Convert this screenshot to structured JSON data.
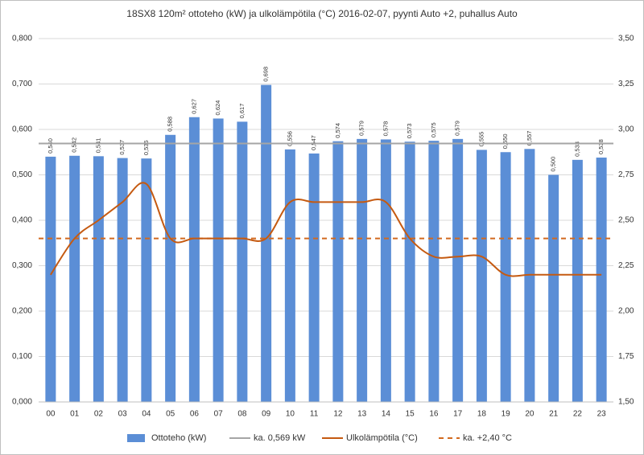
{
  "chart_data": {
    "type": "bar",
    "title": "18SX8 120m² ottoteho (kW) ja ulkolämpötila (°C) 2016-02-07, pyynti Auto +2, puhallus Auto",
    "categories": [
      "00",
      "01",
      "02",
      "03",
      "04",
      "05",
      "06",
      "07",
      "08",
      "09",
      "10",
      "11",
      "12",
      "13",
      "14",
      "15",
      "16",
      "17",
      "18",
      "19",
      "20",
      "21",
      "22",
      "23"
    ],
    "series": [
      {
        "name": "Ottoteho (kW)",
        "color": "#5b8ed6",
        "type": "bar",
        "values": [
          0.54,
          0.542,
          0.541,
          0.537,
          0.536,
          0.588,
          0.627,
          0.624,
          0.617,
          0.698,
          0.556,
          0.547,
          0.574,
          0.579,
          0.578,
          0.573,
          0.575,
          0.579,
          0.555,
          0.55,
          0.557,
          0.5,
          0.533,
          0.538
        ],
        "value_labels": [
          "0,540",
          "0,542",
          "0,541",
          "0,537",
          "0,536",
          "0,588",
          "0,627",
          "0,624",
          "0,617",
          "0,698",
          "0,556",
          "0,547",
          "0,574",
          "0,579",
          "0,578",
          "0,573",
          "0,575",
          "0,579",
          "0,555",
          "0,550",
          "0,557",
          "0,500",
          "0,533",
          "0,538"
        ]
      },
      {
        "name": "Ulkolämpötila (°C)",
        "color": "#c55a11",
        "type": "line",
        "axis": "y2",
        "values": [
          2.2,
          2.4,
          2.5,
          2.6,
          2.7,
          2.4,
          2.4,
          2.4,
          2.4,
          2.4,
          2.6,
          2.6,
          2.6,
          2.6,
          2.6,
          2.4,
          2.3,
          2.3,
          2.3,
          2.2,
          2.2,
          2.2,
          2.2,
          2.2
        ]
      }
    ],
    "reference_lines": [
      {
        "name": "ka. 0,569 kW",
        "color": "#a5a5a5",
        "value": 0.569,
        "dashed": false
      },
      {
        "name": "ka. +2,40 °C",
        "color": "#d2691e",
        "value": 2.4,
        "axis": "y2",
        "dashed": true
      }
    ],
    "ylim": [
      0,
      0.8
    ],
    "yticks": [
      {
        "value": 0,
        "label": "0,000"
      },
      {
        "value": 0.1,
        "label": "0,100"
      },
      {
        "value": 0.2,
        "label": "0,200"
      },
      {
        "value": 0.3,
        "label": "0,300"
      },
      {
        "value": 0.4,
        "label": "0,400"
      },
      {
        "value": 0.5,
        "label": "0,500"
      },
      {
        "value": 0.6,
        "label": "0,600"
      },
      {
        "value": 0.7,
        "label": "0,700"
      },
      {
        "value": 0.8,
        "label": "0,800"
      }
    ],
    "y2lim": [
      1.5,
      3.5
    ],
    "y2ticks": [
      {
        "value": 1.5,
        "label": "1,50"
      },
      {
        "value": 1.75,
        "label": "1,75"
      },
      {
        "value": 2,
        "label": "2,00"
      },
      {
        "value": 2.25,
        "label": "2,25"
      },
      {
        "value": 2.5,
        "label": "2,50"
      },
      {
        "value": 2.75,
        "label": "2,75"
      },
      {
        "value": 3,
        "label": "3,00"
      },
      {
        "value": 3.25,
        "label": "3,25"
      },
      {
        "value": 3.5,
        "label": "3,50"
      }
    ],
    "grid": true,
    "legend": "bottom"
  }
}
